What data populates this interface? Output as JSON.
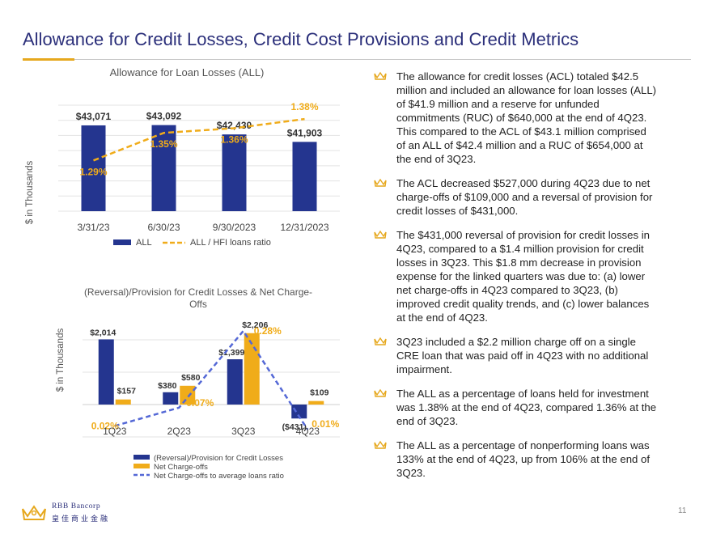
{
  "page": {
    "title": "Allowance for Credit Losses, Credit Cost Provisions and Credit Metrics",
    "page_number": "11",
    "accent_color": "#e6a81e",
    "brand_color": "#2b2f7a"
  },
  "logo": {
    "name": "RBB Bancorp",
    "chinese": "皇佳商业金融"
  },
  "bullets": [
    "The allowance for credit losses (ACL) totaled $42.5 million and included an allowance for loan losses (ALL) of $41.9 million and a reserve for unfunded commitments (RUC) of $640,000 at the end of 4Q23. This compared to the ACL of $43.1 million comprised of an ALL of $42.4 million and a RUC of $654,000 at the end of 3Q23.",
    "The ACL decreased $527,000 during 4Q23 due to net charge-offs of $109,000 and a reversal of provision for credit losses of $431,000.",
    "The $431,000 reversal of provision for credit losses in 4Q23, compared to a $1.4 million provision for credit losses in 3Q23. This $1.8 mm decrease in provision expense for the linked quarters was due to: (a) lower net charge-offs in 4Q23 compared to 3Q23, (b) improved credit quality trends, and (c) lower balances at the end of 4Q23.",
    "3Q23 included a $2.2 million charge off on a single CRE loan that was paid off in 4Q23 with no additional impairment.",
    "The ALL as a percentage of loans held for investment was 1.38% at the end of 4Q23, compared 1.36% at the end of 3Q23.",
    "The ALL as a percentage of nonperforming loans was 133% at the end of 4Q23, up from 106% at the end of 3Q23."
  ],
  "chart_data": [
    {
      "type": "bar",
      "title": "Allowance for Loan Losses (ALL)",
      "ylabel": "$ in Thousands",
      "categories": [
        "3/31/23",
        "6/30/23",
        "9/30/2023",
        "12/31/2023"
      ],
      "series": [
        {
          "name": "ALL",
          "kind": "bar",
          "color": "#24358f",
          "values": [
            43071,
            43092,
            42430,
            41903
          ],
          "labels": [
            "$43,071",
            "$43,092",
            "$42,430",
            "$41,903"
          ]
        },
        {
          "name": "ALL / HFI loans ratio",
          "kind": "dashed-line",
          "color": "#f0ac1a",
          "values": [
            1.29,
            1.35,
            1.36,
            1.38
          ],
          "labels": [
            "1.29%",
            "1.35%",
            "1.36%",
            "1.38%"
          ]
        }
      ],
      "bar_axis_range": [
        37000,
        44500
      ],
      "ratio_axis_range": [
        1.18,
        1.41
      ],
      "grid": true,
      "legend_position": "bottom"
    },
    {
      "type": "bar",
      "title": "(Reversal)/Provision for Credit Losses & Net Charge-Offs",
      "ylabel": "$ in Thousands",
      "categories": [
        "1Q23",
        "2Q23",
        "3Q23",
        "4Q23"
      ],
      "series": [
        {
          "name": "(Reversal)/Provision for Credit Losses",
          "kind": "bar",
          "color": "#24358f",
          "values": [
            2014,
            380,
            1399,
            -431
          ],
          "labels": [
            "$2,014",
            "$380",
            "$1,399",
            "($431)"
          ]
        },
        {
          "name": "Net Charge-offs",
          "kind": "bar",
          "color": "#f0ac1a",
          "values": [
            157,
            580,
            2206,
            109
          ],
          "labels": [
            "$157",
            "$580",
            "$2,206",
            "$109"
          ]
        },
        {
          "name": "Net Charge-offs to average loans ratio",
          "kind": "dashed-line",
          "color": "#5468d6",
          "values": [
            0.02,
            0.07,
            0.28,
            0.01
          ],
          "labels": [
            "0.02%",
            "0.07%",
            "0.28%",
            "0.01%"
          ]
        }
      ],
      "bar_axis_range": [
        -1000,
        2500
      ],
      "ratio_axis_range": [
        -0.01,
        0.3
      ],
      "grid": true,
      "legend_position": "bottom"
    }
  ]
}
